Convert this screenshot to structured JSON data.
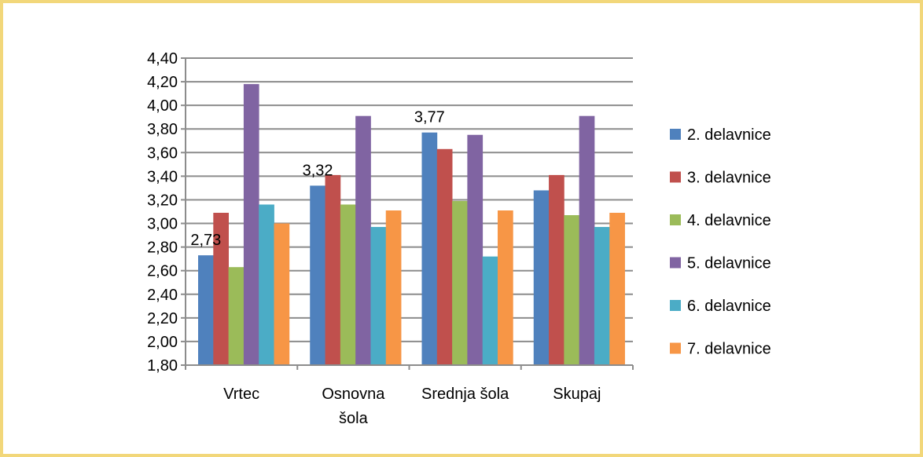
{
  "colors": {
    "frame_border": "#f2d77a",
    "gridline": "#8c8c8c",
    "axis": "#8c8c8c"
  },
  "chart_data": {
    "type": "bar",
    "title": "",
    "xlabel": "",
    "ylabel": "",
    "ylim": [
      1.8,
      4.4
    ],
    "ytick_step": 0.2,
    "ytick_decimals": 2,
    "decimal_separator": ",",
    "grid": true,
    "legend_position": "right",
    "categories": [
      [
        "Vrtec"
      ],
      [
        "Osnovna",
        "šola"
      ],
      [
        "Srednja šola"
      ],
      [
        "Skupaj"
      ]
    ],
    "series": [
      {
        "name": "2. delavnice",
        "color": "#4f81bd",
        "values": [
          2.73,
          3.32,
          3.77,
          3.28
        ]
      },
      {
        "name": "3. delavnice",
        "color": "#c0504d",
        "values": [
          3.09,
          3.41,
          3.63,
          3.41
        ]
      },
      {
        "name": "4. delavnice",
        "color": "#9bbb59",
        "values": [
          2.63,
          3.16,
          3.19,
          3.07
        ]
      },
      {
        "name": "5. delavnice",
        "color": "#8064a2",
        "values": [
          4.18,
          3.91,
          3.75,
          3.91
        ]
      },
      {
        "name": "6. delavnice",
        "color": "#4bacc6",
        "values": [
          3.16,
          2.97,
          2.72,
          2.97
        ]
      },
      {
        "name": "7. delavnice",
        "color": "#f79646",
        "values": [
          3.0,
          3.11,
          3.11,
          3.09
        ]
      }
    ],
    "data_labels": [
      {
        "series": 0,
        "category": 0,
        "text": "2,73"
      },
      {
        "series": 0,
        "category": 1,
        "text": "3,32"
      },
      {
        "series": 0,
        "category": 2,
        "text": "3,77"
      }
    ]
  }
}
